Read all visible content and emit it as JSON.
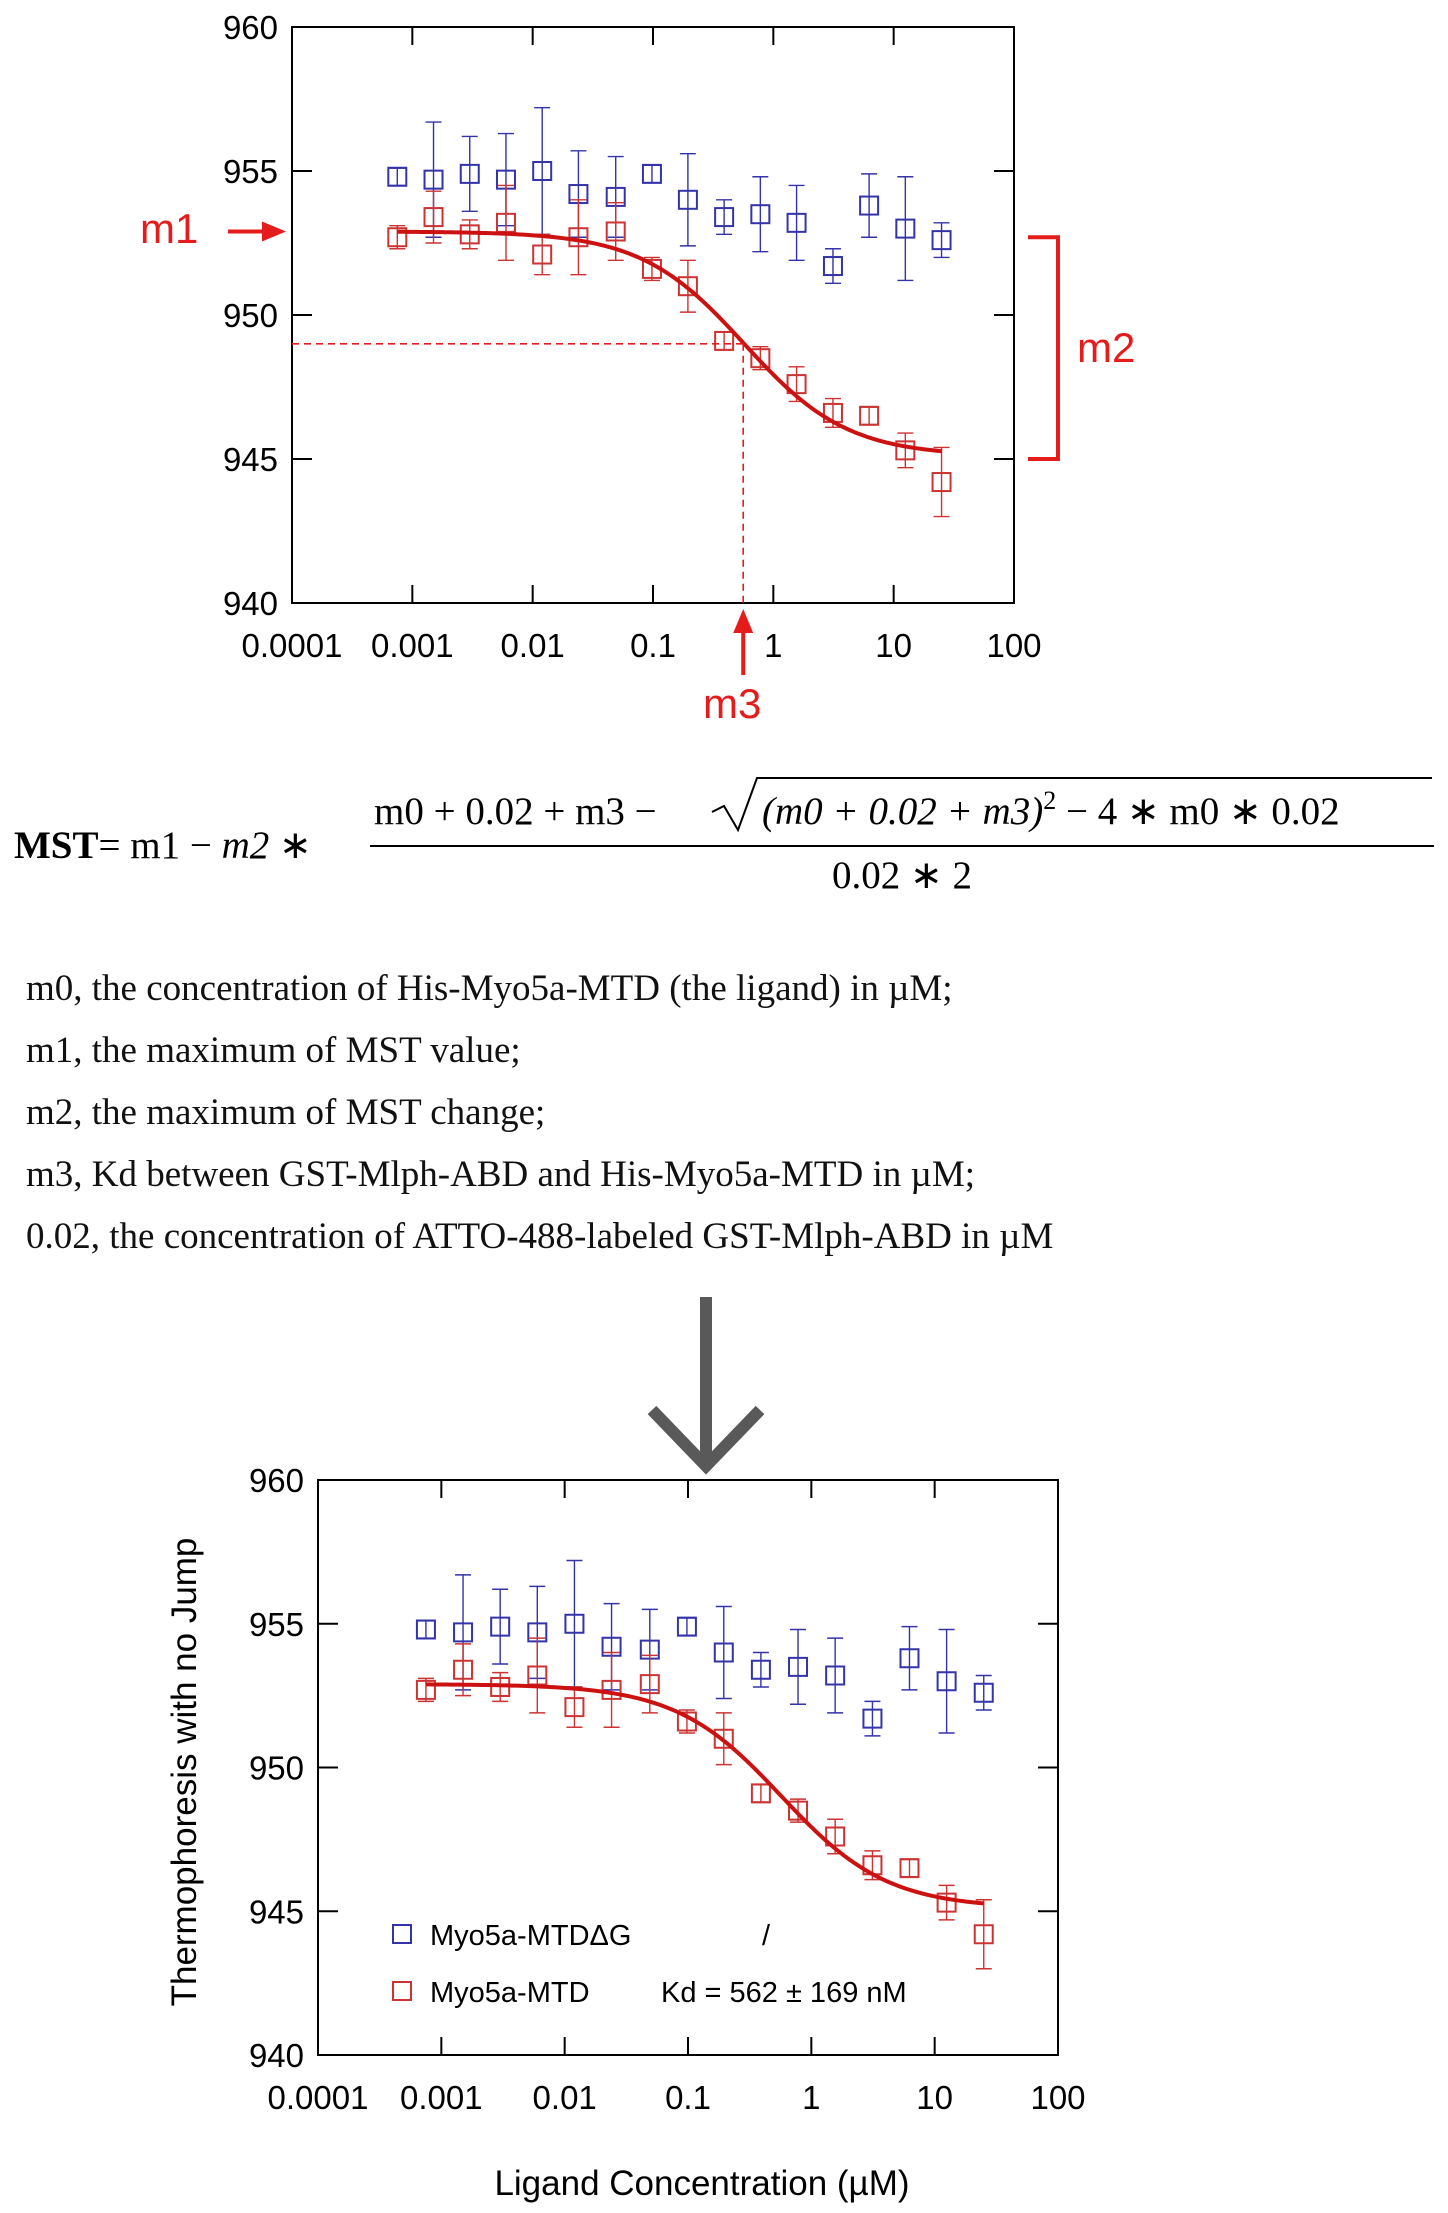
{
  "chart_data": [
    {
      "type": "scatter",
      "title": "",
      "xlabel": "",
      "ylabel": "",
      "xscale": "log",
      "xlim": [
        0.0001,
        100
      ],
      "ylim": [
        940,
        960
      ],
      "x_ticks": [
        "0.0001",
        "0.001",
        "0.01",
        "0.1",
        "1",
        "10",
        "100"
      ],
      "y_ticks": [
        "940",
        "945",
        "950",
        "955",
        "960"
      ],
      "x": [
        0.00075,
        0.0015,
        0.003,
        0.006,
        0.012,
        0.024,
        0.049,
        0.098,
        0.195,
        0.39,
        0.78,
        1.56,
        3.13,
        6.25,
        12.5,
        25
      ],
      "series": [
        {
          "name": "Myo5a-MTDΔG",
          "color": "#3333aa",
          "values": [
            954.8,
            954.7,
            954.9,
            954.7,
            955.0,
            954.2,
            954.1,
            954.9,
            954.0,
            953.4,
            953.5,
            953.2,
            951.7,
            953.8,
            953.0,
            952.6
          ],
          "errors": [
            0.3,
            2.0,
            1.3,
            1.6,
            2.2,
            1.5,
            1.4,
            0.3,
            1.6,
            0.6,
            1.3,
            1.3,
            0.6,
            1.1,
            1.8,
            0.6
          ]
        },
        {
          "name": "Myo5a-MTD",
          "color": "#cc3333",
          "values": [
            952.7,
            953.4,
            952.8,
            953.2,
            952.1,
            952.7,
            952.9,
            951.6,
            951.0,
            949.1,
            948.5,
            947.6,
            946.6,
            946.5,
            945.3,
            944.2
          ],
          "errors": [
            0.4,
            0.9,
            0.5,
            1.3,
            0.7,
            1.3,
            1.0,
            0.4,
            0.9,
            0.3,
            0.4,
            0.6,
            0.5,
            0.3,
            0.6,
            1.2
          ]
        }
      ],
      "fit": {
        "color": "#cc1111",
        "m0": 0,
        "m1": 952.9,
        "m2": 7.8,
        "m3": 0.562,
        "x_range": [
          0.00075,
          25
        ]
      },
      "annotations": {
        "m1": "m1",
        "m2": "m2",
        "m3": "m3",
        "dashed_point": {
          "x": 0.562,
          "y": 949.0
        },
        "bracket_y": [
          952.7,
          945.0
        ]
      }
    },
    {
      "type": "scatter",
      "title": "",
      "xlabel": "Ligand Concentration (µM)",
      "ylabel": "Thermophoresis with no Jump",
      "xscale": "log",
      "xlim": [
        0.0001,
        100
      ],
      "ylim": [
        940,
        960
      ],
      "x_ticks": [
        "0.0001",
        "0.001",
        "0.01",
        "0.1",
        "1",
        "10",
        "100"
      ],
      "y_ticks": [
        "940",
        "945",
        "950",
        "955",
        "960"
      ],
      "legend": {
        "placement": "bottom-left",
        "entries": [
          {
            "name": "Myo5a-MTDΔG",
            "note": "/"
          },
          {
            "name": "Myo5a-MTD",
            "note": "Kd = 562 ± 169 nM"
          }
        ]
      }
    }
  ],
  "equation": {
    "lhs": "MST",
    "mid": "= m1 − ",
    "m2": "m2",
    "star": " ∗",
    "numerator_a": "m0 + 0.02 + m3 − ",
    "sqrt_inner": "(m0 + 0.02 + m3)",
    "sqrt_sup": "2",
    "sqrt_tail": " − 4 ∗ m0 ∗ 0.02",
    "denominator": "0.02 ∗ 2"
  },
  "definitions": [
    "m0, the concentration of His-Myo5a-MTD (the ligand) in µM;",
    "m1, the maximum of MST value;",
    "m2, the maximum of MST change;",
    "m3, Kd between GST-Mlph-ABD and His-Myo5a-MTD in µM;",
    "0.02, the concentration of ATTO-488-labeled GST-Mlph-ABD in µM"
  ],
  "arrow": {
    "name": "down-arrow-icon",
    "color": "#595959"
  }
}
